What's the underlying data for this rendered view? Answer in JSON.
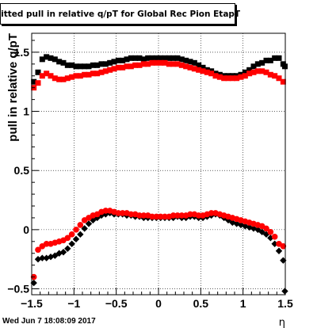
{
  "chart_data": {
    "type": "scatter",
    "title": "Fitted pull in relative q/pT for Global Rec Pion EtapT",
    "xlabel": "η",
    "ylabel": "pull in relative q/pT",
    "xlim": [
      -1.5,
      1.5
    ],
    "ylim": [
      -0.55,
      1.66
    ],
    "xticks": [
      -1.5,
      -1,
      -0.5,
      0,
      0.5,
      1,
      1.5
    ],
    "xtick_labels": [
      "−1.5",
      "−1",
      "−0.5",
      "0",
      "0.5",
      "1",
      "1.5"
    ],
    "yticks": [
      -0.5,
      0,
      0.5,
      1,
      1.5
    ],
    "ytick_labels": [
      "−0.5",
      "0",
      "0.5",
      "1",
      "1.5"
    ],
    "grid": true,
    "series": [
      {
        "color": "#000000",
        "marker": "square",
        "x": [
          -1.475,
          -1.425,
          -1.375,
          -1.325,
          -1.275,
          -1.225,
          -1.175,
          -1.125,
          -1.075,
          -1.025,
          -0.975,
          -0.925,
          -0.875,
          -0.825,
          -0.775,
          -0.725,
          -0.675,
          -0.625,
          -0.575,
          -0.525,
          -0.475,
          -0.425,
          -0.375,
          -0.325,
          -0.275,
          -0.225,
          -0.175,
          -0.125,
          -0.075,
          -0.025,
          0.025,
          0.075,
          0.125,
          0.175,
          0.225,
          0.275,
          0.325,
          0.375,
          0.425,
          0.475,
          0.525,
          0.575,
          0.625,
          0.675,
          0.725,
          0.775,
          0.825,
          0.875,
          0.925,
          0.975,
          1.025,
          1.075,
          1.125,
          1.175,
          1.225,
          1.275,
          1.325,
          1.375,
          1.425,
          1.475
        ],
        "y": [
          1.25,
          1.33,
          1.44,
          1.46,
          1.45,
          1.44,
          1.42,
          1.41,
          1.39,
          1.39,
          1.38,
          1.38,
          1.38,
          1.38,
          1.39,
          1.39,
          1.4,
          1.4,
          1.41,
          1.42,
          1.43,
          1.43,
          1.44,
          1.45,
          1.45,
          1.45,
          1.44,
          1.45,
          1.45,
          1.45,
          1.45,
          1.45,
          1.45,
          1.45,
          1.45,
          1.44,
          1.43,
          1.42,
          1.41,
          1.39,
          1.37,
          1.35,
          1.34,
          1.32,
          1.31,
          1.3,
          1.3,
          1.3,
          1.3,
          1.31,
          1.33,
          1.35,
          1.38,
          1.4,
          1.41,
          1.43,
          1.43,
          1.45,
          1.45,
          1.4
        ]
      },
      {
        "color": "#ff0000",
        "marker": "square",
        "x": [
          -1.475,
          -1.425,
          -1.375,
          -1.325,
          -1.275,
          -1.225,
          -1.175,
          -1.125,
          -1.075,
          -1.025,
          -0.975,
          -0.925,
          -0.875,
          -0.825,
          -0.775,
          -0.725,
          -0.675,
          -0.625,
          -0.575,
          -0.525,
          -0.475,
          -0.425,
          -0.375,
          -0.325,
          -0.275,
          -0.225,
          -0.175,
          -0.125,
          -0.075,
          -0.025,
          0.025,
          0.075,
          0.125,
          0.175,
          0.225,
          0.275,
          0.325,
          0.375,
          0.425,
          0.475,
          0.525,
          0.575,
          0.625,
          0.675,
          0.725,
          0.775,
          0.825,
          0.875,
          0.925,
          0.975,
          1.025,
          1.075,
          1.125,
          1.175,
          1.225,
          1.275,
          1.325,
          1.375,
          1.425,
          1.475
        ],
        "y": [
          1.2,
          1.24,
          1.3,
          1.32,
          1.3,
          1.28,
          1.27,
          1.27,
          1.28,
          1.29,
          1.3,
          1.3,
          1.31,
          1.31,
          1.32,
          1.32,
          1.33,
          1.34,
          1.35,
          1.36,
          1.37,
          1.37,
          1.38,
          1.38,
          1.39,
          1.39,
          1.4,
          1.4,
          1.41,
          1.41,
          1.41,
          1.41,
          1.4,
          1.4,
          1.4,
          1.39,
          1.38,
          1.37,
          1.36,
          1.35,
          1.34,
          1.33,
          1.32,
          1.3,
          1.29,
          1.28,
          1.28,
          1.28,
          1.28,
          1.29,
          1.3,
          1.32,
          1.33,
          1.34,
          1.34,
          1.33,
          1.31,
          1.3,
          1.28,
          1.25
        ]
      },
      {
        "color": "#000000",
        "marker": "diamond",
        "x": [
          -1.475,
          -1.425,
          -1.375,
          -1.325,
          -1.275,
          -1.225,
          -1.175,
          -1.125,
          -1.075,
          -1.025,
          -0.975,
          -0.925,
          -0.875,
          -0.825,
          -0.775,
          -0.725,
          -0.675,
          -0.625,
          -0.575,
          -0.525,
          -0.475,
          -0.425,
          -0.375,
          -0.325,
          -0.275,
          -0.225,
          -0.175,
          -0.125,
          -0.075,
          -0.025,
          0.025,
          0.075,
          0.125,
          0.175,
          0.225,
          0.275,
          0.325,
          0.375,
          0.425,
          0.475,
          0.525,
          0.575,
          0.625,
          0.675,
          0.725,
          0.775,
          0.825,
          0.875,
          0.925,
          0.975,
          1.025,
          1.075,
          1.125,
          1.175,
          1.225,
          1.275,
          1.325,
          1.375,
          1.425,
          1.475
        ],
        "y": [
          -0.45,
          -0.25,
          -0.24,
          -0.24,
          -0.23,
          -0.22,
          -0.2,
          -0.19,
          -0.16,
          -0.12,
          -0.08,
          -0.04,
          0.01,
          0.05,
          0.08,
          0.1,
          0.12,
          0.13,
          0.14,
          0.13,
          0.13,
          0.13,
          0.12,
          0.12,
          0.11,
          0.11,
          0.1,
          0.1,
          0.1,
          0.1,
          0.1,
          0.1,
          0.1,
          0.1,
          0.11,
          0.1,
          0.1,
          0.11,
          0.11,
          0.1,
          0.1,
          0.11,
          0.12,
          0.13,
          0.12,
          0.1,
          0.08,
          0.06,
          0.05,
          0.04,
          0.03,
          0.02,
          0.01,
          0.0,
          -0.02,
          -0.04,
          -0.07,
          -0.12,
          -0.18,
          -0.26
        ]
      },
      {
        "color": "#ff0000",
        "marker": "circle",
        "x": [
          -1.475,
          -1.425,
          -1.375,
          -1.325,
          -1.275,
          -1.225,
          -1.175,
          -1.125,
          -1.075,
          -1.025,
          -0.975,
          -0.925,
          -0.875,
          -0.825,
          -0.775,
          -0.725,
          -0.675,
          -0.625,
          -0.575,
          -0.525,
          -0.475,
          -0.425,
          -0.375,
          -0.325,
          -0.275,
          -0.225,
          -0.175,
          -0.125,
          -0.075,
          -0.025,
          0.025,
          0.075,
          0.125,
          0.175,
          0.225,
          0.275,
          0.325,
          0.375,
          0.425,
          0.475,
          0.525,
          0.575,
          0.625,
          0.675,
          0.725,
          0.775,
          0.825,
          0.875,
          0.925,
          0.975,
          1.025,
          1.075,
          1.125,
          1.175,
          1.225,
          1.275,
          1.325,
          1.375,
          1.425,
          1.475
        ],
        "y": [
          -0.4,
          -0.17,
          -0.14,
          -0.12,
          -0.12,
          -0.11,
          -0.1,
          -0.09,
          -0.07,
          -0.04,
          0.0,
          0.04,
          0.08,
          0.1,
          0.12,
          0.13,
          0.15,
          0.16,
          0.16,
          0.15,
          0.14,
          0.14,
          0.14,
          0.13,
          0.13,
          0.12,
          0.12,
          0.12,
          0.11,
          0.11,
          0.11,
          0.11,
          0.11,
          0.12,
          0.12,
          0.12,
          0.12,
          0.13,
          0.13,
          0.12,
          0.12,
          0.13,
          0.14,
          0.14,
          0.13,
          0.12,
          0.11,
          0.1,
          0.09,
          0.08,
          0.07,
          0.06,
          0.05,
          0.04,
          0.03,
          0.01,
          -0.02,
          -0.06,
          -0.12,
          -0.14
        ]
      }
    ],
    "extra_points": [
      {
        "x": 1.495,
        "y": -0.52,
        "color": "#000000",
        "marker": "diamond"
      },
      {
        "x": 1.495,
        "y": 1.38,
        "color": "#000000",
        "marker": "square"
      }
    ]
  },
  "footer": {
    "timestamp": "Wed Jun  7 18:08:09 2017"
  }
}
